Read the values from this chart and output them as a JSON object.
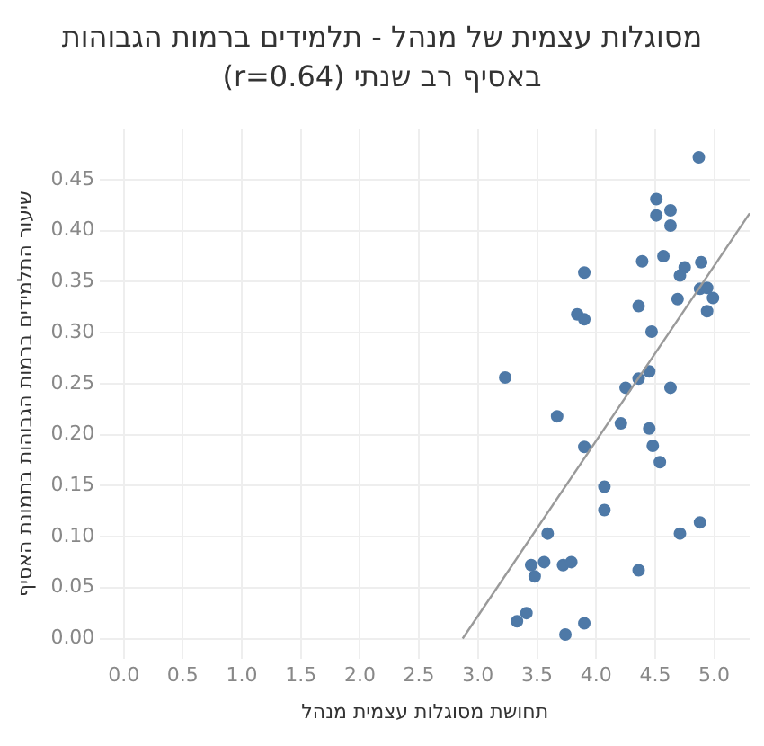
{
  "chart_data": {
    "type": "scatter",
    "title": "מסוגלות עצמית של מנהל - תלמידים ברמות הגבוהות באסיף רב שנתי (r=0.64)",
    "xlabel": "תחושת מסוגלות עצמית מנהל",
    "ylabel": "שיעור התלמידים ברמות הגבוהות בתמונת האסיף",
    "xlim": [
      -0.2,
      5.3
    ],
    "xticks": [
      {
        "value": 0,
        "label": "0.0"
      },
      0.5,
      {
        "value": 1,
        "label": "1.0"
      },
      1.5,
      {
        "value": 2,
        "label": "2.0"
      },
      2.5,
      {
        "value": 3,
        "label": "3.0"
      },
      3.5,
      {
        "value": 4,
        "label": "4.0"
      },
      4.5,
      {
        "value": 5,
        "label": "5.0"
      }
    ],
    "ylim": [
      -0.02,
      0.5
    ],
    "yticks": [
      {
        "value": 0,
        "label": "0.00"
      },
      0.05,
      {
        "value": 0.1,
        "label": "0.10"
      },
      0.15,
      {
        "value": 0.2,
        "label": "0.20"
      },
      0.25,
      {
        "value": 0.3,
        "label": "0.30"
      },
      0.35,
      {
        "value": 0.4,
        "label": "0.40"
      },
      0.45
    ],
    "grid": true,
    "marker": "circle",
    "series": [
      {
        "color": "#4e79a7",
        "x": [
          4.87,
          4.51,
          4.63,
          4.51,
          4.63,
          3.9,
          4.39,
          4.57,
          4.75,
          4.71,
          4.89,
          3.84,
          3.9,
          4.36,
          4.69,
          4.88,
          4.94,
          4.99,
          4.94,
          4.47,
          3.23,
          4.36,
          4.45,
          4.25,
          4.63,
          3.67,
          4.21,
          4.45,
          3.9,
          4.48,
          4.54,
          4.07,
          4.07,
          4.88,
          4.71,
          3.59,
          3.45,
          3.56,
          3.72,
          3.79,
          3.48,
          4.36,
          3.41,
          3.33,
          3.9,
          3.74
        ],
        "values": [
          0.472,
          0.431,
          0.42,
          0.415,
          0.405,
          0.359,
          0.37,
          0.375,
          0.364,
          0.356,
          0.369,
          0.318,
          0.313,
          0.326,
          0.333,
          0.343,
          0.344,
          0.334,
          0.321,
          0.301,
          0.256,
          0.255,
          0.262,
          0.246,
          0.246,
          0.218,
          0.211,
          0.206,
          0.188,
          0.189,
          0.173,
          0.149,
          0.126,
          0.114,
          0.103,
          0.103,
          0.072,
          0.075,
          0.072,
          0.075,
          0.061,
          0.067,
          0.025,
          0.017,
          0.015,
          0.004
        ]
      },
      {
        "type": "line",
        "color": "#9a9a9a",
        "marker": "none",
        "x": [
          2.87,
          5.3
        ],
        "values": [
          0,
          0.417
        ]
      }
    ]
  }
}
